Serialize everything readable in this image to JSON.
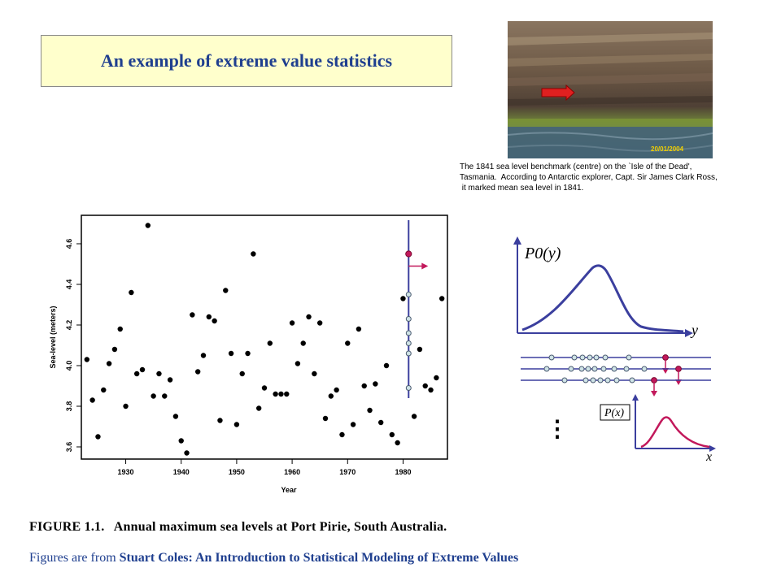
{
  "title": "An example of extreme value statistics",
  "photo": {
    "date_stamp": "20/01/2004",
    "caption_lines": [
      "The 1841 sea level benchmark (centre) on the `Isle of the Dead',",
      "Tasmania.  According to Antarctic explorer, Capt. Sir James Clark Ross,",
      " it marked mean sea level in 1841."
    ]
  },
  "figure_caption": {
    "label": "FIGURE 1.1.",
    "text": "Annual maximum sea levels at Port Pirie, South Australia."
  },
  "footer": {
    "prefix": "Figures are from ",
    "source": "Stuart Coles: An Introduction to Statistical Modeling of  Extreme Values"
  },
  "diagram": {
    "top_label": "P0(y)",
    "y_label": "y",
    "inset_label": "P(x)",
    "x_label": "x",
    "dots_symbol": "⋮",
    "accent_color": "#c2185b",
    "axis_color": "#3b3f9e"
  },
  "chart_data": {
    "type": "scatter",
    "xlabel": "Year",
    "ylabel": "Sea-level (meters)",
    "xlim": [
      1922,
      1988
    ],
    "ylim": [
      3.54,
      4.74
    ],
    "xticks": [
      1930,
      1940,
      1950,
      1960,
      1970,
      1980
    ],
    "yticks": [
      3.6,
      3.8,
      4.0,
      4.2,
      4.4,
      4.6
    ],
    "xtick_labels": [
      "1930",
      "1940",
      "1950",
      "1960",
      "1970",
      "1980"
    ],
    "ytick_labels": [
      "3.6",
      "3.8",
      "4.0",
      "4.2",
      "4.4",
      "4.6"
    ],
    "x": [
      1923,
      1924,
      1925,
      1926,
      1927,
      1928,
      1929,
      1930,
      1931,
      1932,
      1933,
      1934,
      1935,
      1936,
      1937,
      1938,
      1939,
      1940,
      1941,
      1942,
      1943,
      1944,
      1945,
      1946,
      1947,
      1948,
      1949,
      1950,
      1951,
      1952,
      1953,
      1954,
      1955,
      1956,
      1957,
      1958,
      1959,
      1960,
      1961,
      1962,
      1963,
      1964,
      1965,
      1966,
      1967,
      1968,
      1969,
      1970,
      1971,
      1972,
      1973,
      1974,
      1975,
      1976,
      1977,
      1978,
      1979,
      1980,
      1981,
      1982,
      1983,
      1984,
      1985,
      1986,
      1987
    ],
    "y": [
      4.03,
      3.83,
      3.65,
      3.88,
      4.01,
      4.08,
      4.18,
      3.8,
      4.36,
      3.96,
      3.98,
      4.69,
      3.85,
      3.96,
      3.85,
      3.93,
      3.75,
      3.63,
      3.57,
      4.25,
      3.97,
      4.05,
      4.24,
      4.22,
      3.73,
      4.37,
      4.06,
      3.71,
      3.96,
      4.06,
      4.55,
      3.79,
      3.89,
      4.11,
      3.86,
      3.86,
      3.86,
      4.21,
      4.01,
      4.11,
      4.24,
      3.96,
      4.21,
      3.74,
      3.85,
      3.88,
      3.66,
      4.11,
      3.71,
      4.18,
      3.9,
      3.78,
      3.91,
      3.72,
      4.0,
      3.66,
      3.62,
      4.33,
      4.55,
      3.75,
      4.08,
      3.9,
      3.88,
      3.94,
      4.33
    ],
    "highlight_year": 1981,
    "highlight_value": 4.55,
    "marker_values": [
      4.35,
      4.23,
      4.16,
      4.11,
      4.06,
      3.89
    ]
  }
}
